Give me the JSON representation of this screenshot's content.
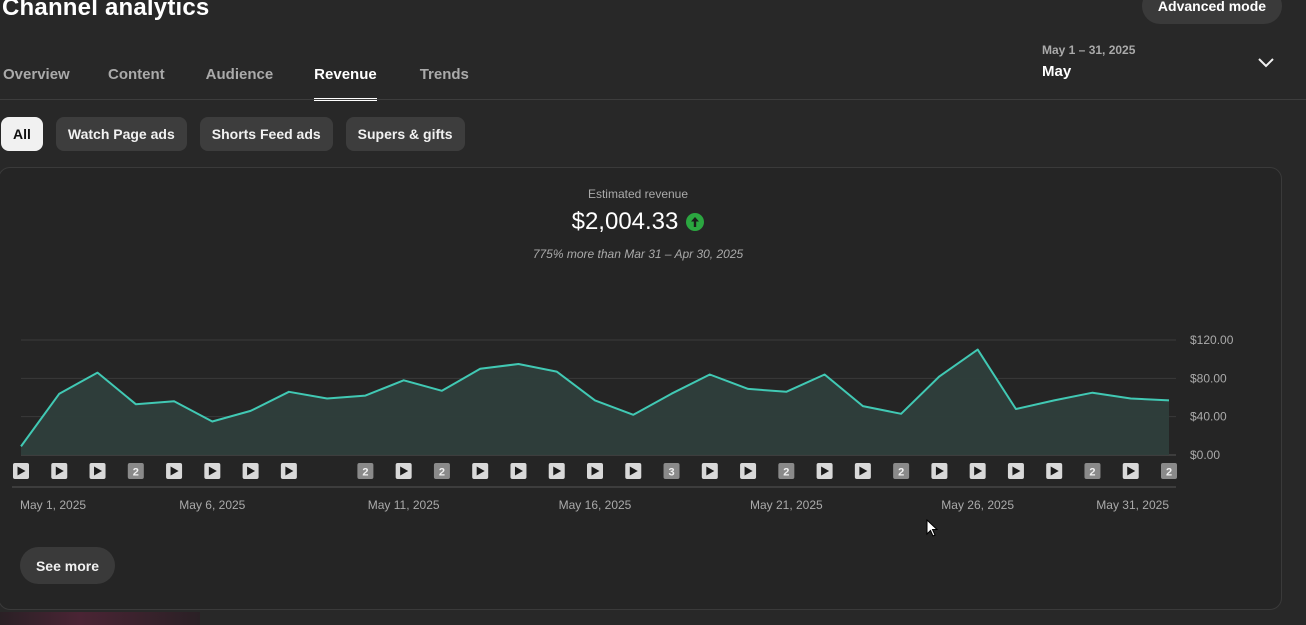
{
  "header": {
    "title": "Channel analytics",
    "advanced_mode": "Advanced mode"
  },
  "tabs": [
    {
      "label": "Overview",
      "active": false
    },
    {
      "label": "Content",
      "active": false
    },
    {
      "label": "Audience",
      "active": false
    },
    {
      "label": "Revenue",
      "active": true
    },
    {
      "label": "Trends",
      "active": false
    }
  ],
  "date_range": {
    "range": "May 1 – 31, 2025",
    "period": "May",
    "icon": "chevron-down-icon"
  },
  "filters": [
    {
      "label": "All",
      "active": true
    },
    {
      "label": "Watch Page ads",
      "active": false
    },
    {
      "label": "Shorts Feed ads",
      "active": false
    },
    {
      "label": "Supers & gifts",
      "active": false
    }
  ],
  "metric": {
    "label": "Estimated revenue",
    "value": "$2,004.33",
    "trend_icon": "arrow-up-icon",
    "trend_color": "#2ba640",
    "comparison": "775% more than Mar 31 – Apr 30, 2025"
  },
  "see_more": "See more",
  "chart_data": {
    "type": "area",
    "ylim": [
      0,
      120
    ],
    "y_ticks": [
      "$0.00",
      "$40.00",
      "$80.00",
      "$120.00"
    ],
    "x_tick_labels": [
      {
        "day": 1,
        "label": "May 1, 2025"
      },
      {
        "day": 6,
        "label": "May 6, 2025"
      },
      {
        "day": 11,
        "label": "May 11, 2025"
      },
      {
        "day": 16,
        "label": "May 16, 2025"
      },
      {
        "day": 21,
        "label": "May 21, 2025"
      },
      {
        "day": 26,
        "label": "May 26, 2025"
      },
      {
        "day": 31,
        "label": "May 31, 2025"
      }
    ],
    "line_color": "#41c9b4",
    "fill_color": "#2e3e3b",
    "series": [
      {
        "x": [
          "May 1",
          "May 2",
          "May 3",
          "May 4",
          "May 5",
          "May 6",
          "May 7",
          "May 8",
          "May 9",
          "May 10",
          "May 11",
          "May 12",
          "May 13",
          "May 14",
          "May 15",
          "May 16",
          "May 17",
          "May 18",
          "May 19",
          "May 20",
          "May 21",
          "May 22",
          "May 23",
          "May 24",
          "May 25",
          "May 26",
          "May 27",
          "May 28",
          "May 29",
          "May 30",
          "May 31"
        ],
        "values": [
          9,
          64,
          86,
          53,
          56,
          35,
          46,
          66,
          59,
          62,
          78,
          67,
          90,
          95,
          87,
          57,
          42,
          64,
          84,
          69,
          66,
          84,
          51,
          43,
          82,
          110,
          48,
          57,
          65,
          59,
          57
        ]
      }
    ],
    "video_markers": [
      {
        "day": 1,
        "count": null
      },
      {
        "day": 2,
        "count": null
      },
      {
        "day": 3,
        "count": null
      },
      {
        "day": 4,
        "count": "2"
      },
      {
        "day": 5,
        "count": null
      },
      {
        "day": 6,
        "count": null
      },
      {
        "day": 7,
        "count": null
      },
      {
        "day": 8,
        "count": null
      },
      {
        "day": 10,
        "count": "2"
      },
      {
        "day": 11,
        "count": null
      },
      {
        "day": 12,
        "count": "2"
      },
      {
        "day": 13,
        "count": null
      },
      {
        "day": 14,
        "count": null
      },
      {
        "day": 15,
        "count": null
      },
      {
        "day": 16,
        "count": null
      },
      {
        "day": 17,
        "count": null
      },
      {
        "day": 18,
        "count": "3"
      },
      {
        "day": 19,
        "count": null
      },
      {
        "day": 20,
        "count": null
      },
      {
        "day": 21,
        "count": "2"
      },
      {
        "day": 22,
        "count": null
      },
      {
        "day": 23,
        "count": null
      },
      {
        "day": 24,
        "count": "2"
      },
      {
        "day": 25,
        "count": null
      },
      {
        "day": 26,
        "count": null
      },
      {
        "day": 27,
        "count": null
      },
      {
        "day": 28,
        "count": null
      },
      {
        "day": 29,
        "count": "2"
      },
      {
        "day": 30,
        "count": null
      },
      {
        "day": 31,
        "count": "2"
      }
    ]
  }
}
